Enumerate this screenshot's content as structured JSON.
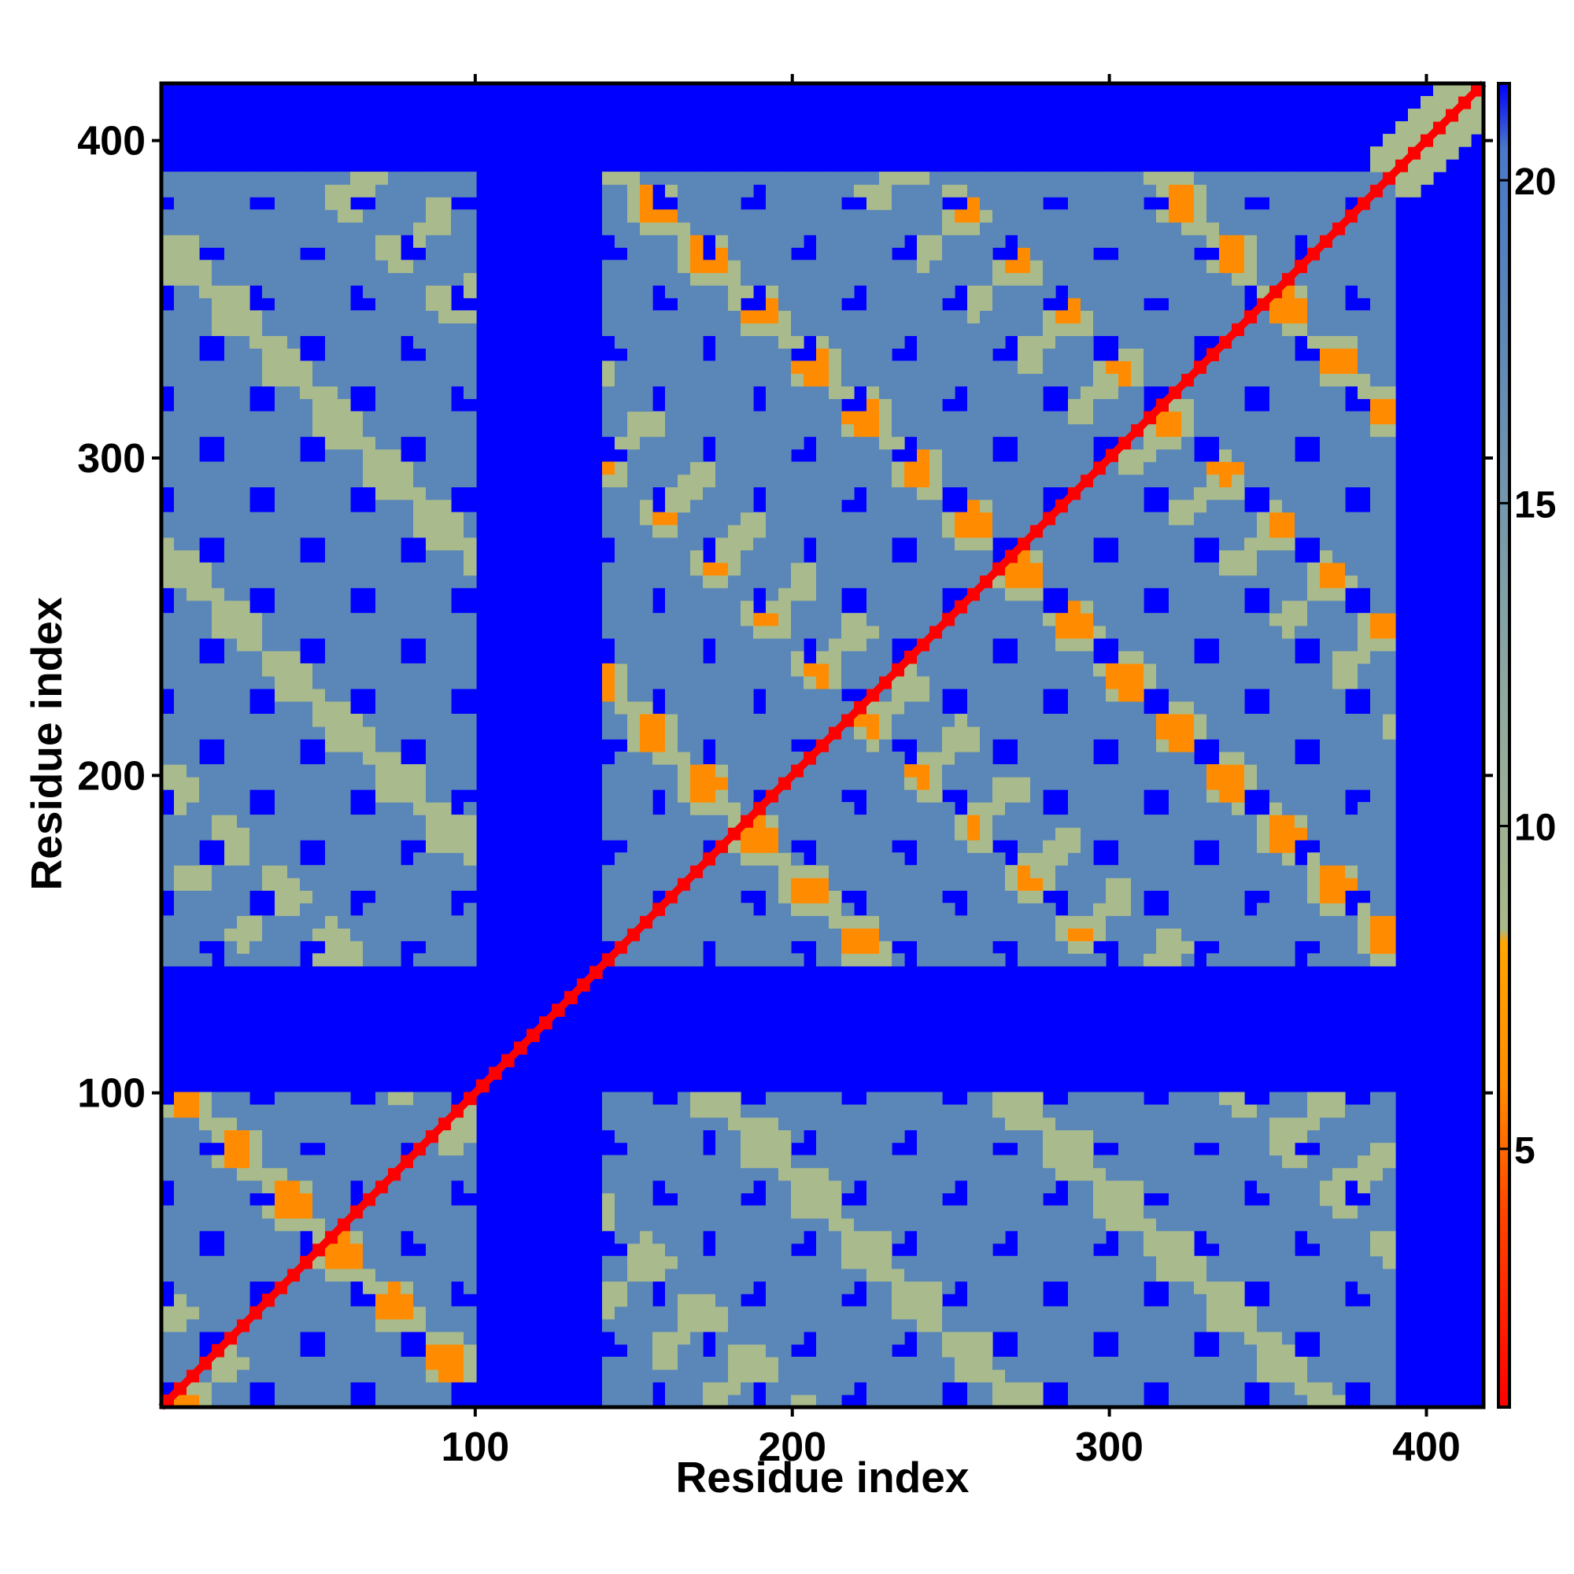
{
  "chart_data": {
    "type": "heatmap",
    "title": "",
    "xlabel": "Residue index",
    "ylabel": "Residue index",
    "xlim": [
      1,
      418
    ],
    "ylim": [
      1,
      418
    ],
    "x_ticks": [
      100,
      200,
      300,
      400
    ],
    "y_ticks": [
      100,
      200,
      300,
      400
    ],
    "grid": false,
    "colorbar": {
      "ticks": [
        5,
        10,
        15,
        20
      ],
      "range": [
        1,
        21.5
      ],
      "stops": [
        {
          "value": 1,
          "color": "#ff0000"
        },
        {
          "value": 4,
          "color": "#ff4400"
        },
        {
          "value": 6,
          "color": "#ff8c00"
        },
        {
          "value": 8.2,
          "color": "#ffa500"
        },
        {
          "value": 8.4,
          "color": "#a8b88a"
        },
        {
          "value": 12,
          "color": "#8fa8a0"
        },
        {
          "value": 18,
          "color": "#5a86b8"
        },
        {
          "value": 20.5,
          "color": "#4a78c8"
        },
        {
          "value": 21.5,
          "color": "#0000ff"
        }
      ]
    },
    "colors": {
      "far": "#0000ff",
      "mid": "#5b87b8",
      "near": "#a9bb8c",
      "close": "#ff8c00",
      "contact": "#ff0000"
    },
    "domains": [
      {
        "start": 1,
        "end": 100
      },
      {
        "start": 140,
        "end": 390
      }
    ],
    "diagonal_extra_segment": [
      390,
      418
    ],
    "note_region_blocks": [
      {
        "x": [
          1,
          100
        ],
        "y": [
          1,
          100
        ]
      },
      {
        "x": [
          140,
          390
        ],
        "y": [
          140,
          390
        ]
      },
      {
        "x": [
          140,
          390
        ],
        "y": [
          1,
          105
        ]
      },
      {
        "x": [
          1,
          100
        ],
        "y": [
          140,
          385
        ]
      }
    ]
  }
}
